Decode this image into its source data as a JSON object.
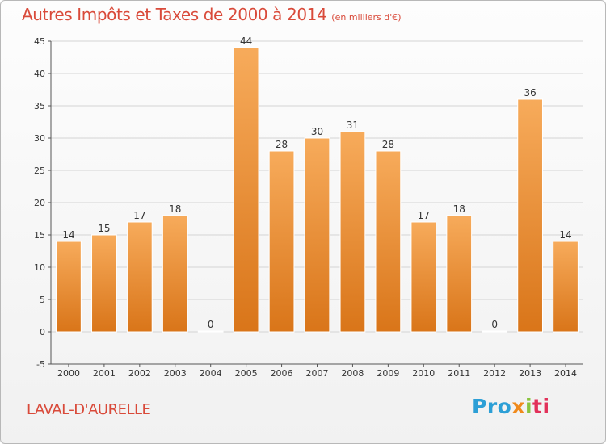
{
  "header": {
    "title": "Autres Impôts et Taxes de 2000 à 2014",
    "subtitle": "(en milliers d'€)"
  },
  "footer": {
    "commune": "LAVAL-D'AURELLE",
    "logo": [
      "Pro",
      "x",
      "i",
      "ti"
    ]
  },
  "colors": {
    "title": "#d94a3a",
    "bar_light": "#f7ab5b",
    "bar_dark": "#d97519",
    "grid": "#d4d4d4",
    "axis": "#555555"
  },
  "chart_data": {
    "type": "bar",
    "title": "Autres Impôts et Taxes de 2000 à 2014",
    "subtitle": "(en milliers d'€)",
    "categories": [
      "2000",
      "2001",
      "2002",
      "2003",
      "2004",
      "2005",
      "2006",
      "2007",
      "2008",
      "2009",
      "2010",
      "2011",
      "2012",
      "2013",
      "2014"
    ],
    "values": [
      14,
      15,
      17,
      18,
      0,
      44,
      28,
      30,
      31,
      28,
      17,
      18,
      0,
      36,
      14
    ],
    "ylim": [
      -5,
      45
    ],
    "yticks": [
      -5,
      0,
      5,
      10,
      15,
      20,
      25,
      30,
      35,
      40,
      45
    ],
    "grid": "horizontal",
    "data_labels": true
  }
}
